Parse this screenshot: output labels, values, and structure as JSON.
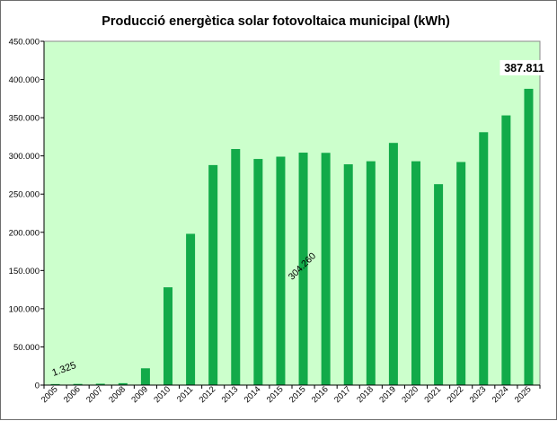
{
  "chart_data": {
    "type": "bar",
    "title": "Producció energètica solar fotovoltaica municipal (kWh)",
    "xlabel": "",
    "ylabel": "",
    "categories": [
      "2005",
      "2006",
      "2007",
      "2008",
      "2009",
      "2010",
      "2011",
      "2012",
      "2013",
      "2014",
      "2015",
      "2015",
      "2016",
      "2017",
      "2018",
      "2019",
      "2020",
      "2021",
      "2022",
      "2023",
      "2024",
      "2025"
    ],
    "values": [
      1325,
      1500,
      1800,
      2500,
      22000,
      128000,
      198000,
      288000,
      309000,
      296000,
      299000,
      304260,
      304000,
      289000,
      293000,
      317000,
      293000,
      263000,
      292000,
      331000,
      353000,
      387811
    ],
    "ylim": [
      0,
      450000
    ],
    "yticks": [
      0,
      50000,
      100000,
      150000,
      200000,
      250000,
      300000,
      350000,
      400000,
      450000
    ],
    "ytick_labels": [
      "0",
      "50.000",
      "100.000",
      "150.000",
      "200.000",
      "250.000",
      "300.000",
      "350.000",
      "400.000",
      "450.000"
    ],
    "grid": false,
    "annotations": [
      {
        "text": "1.325",
        "category_index": 0
      },
      {
        "text": "304.260",
        "category_index": 11
      },
      {
        "text": "387.811",
        "category_index": 21
      }
    ],
    "colors": {
      "bar": "#12aa49",
      "plot_background": "#ccffcc",
      "plot_border": "#8a8a8a"
    }
  }
}
